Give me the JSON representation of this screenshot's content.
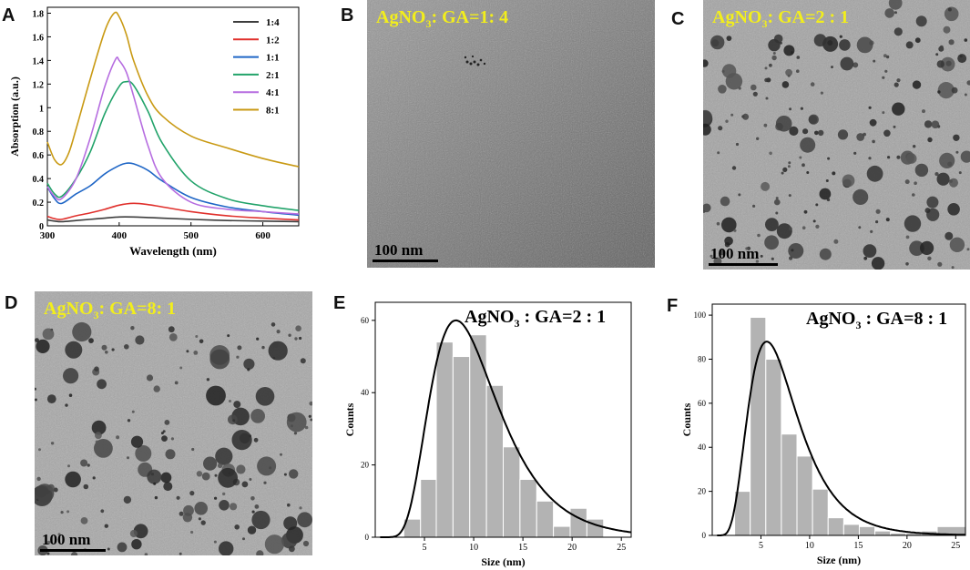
{
  "panels": {
    "A": "A",
    "B": "B",
    "C": "C",
    "D": "D",
    "E": "E",
    "F": "F"
  },
  "tem": {
    "b_label_pre": "AgNO",
    "b_label_sub": "3",
    "b_label_post": ": GA=1: 4",
    "c_label_pre": "AgNO",
    "c_label_sub": "3",
    "c_label_post": ": GA=2 : 1",
    "d_label_pre": "AgNO",
    "d_label_sub": "3",
    "d_label_post": ": GA=8: 1",
    "scale_text": "100 nm"
  },
  "colors": {
    "s1_4": "#3d3d3d",
    "s1_2": "#e0302c",
    "s1_1": "#1f66c6",
    "s2_1": "#22a36a",
    "s4_1": "#b66de0",
    "s8_1": "#c99a14",
    "bar": "#b3b3b3",
    "fit": "#000000",
    "label": "#f2ee1c"
  },
  "chart_data": [
    {
      "id": "A",
      "type": "line",
      "xlabel": "Wavelength  (nm)",
      "ylabel": "Absorption (a.u.)",
      "xlim": [
        300,
        650
      ],
      "ylim": [
        0,
        1.85
      ],
      "xticks": [
        300,
        400,
        500,
        600
      ],
      "yticks": [
        0,
        0.2,
        0.4,
        0.6,
        0.8,
        1.0,
        1.2,
        1.4,
        1.6,
        1.8
      ],
      "legend": "top-right",
      "series": [
        {
          "name": "1:4",
          "color": "#3d3d3d",
          "x": [
            300,
            310,
            320,
            340,
            360,
            380,
            400,
            420,
            440,
            460,
            500,
            550,
            600,
            650
          ],
          "y": [
            0.05,
            0.04,
            0.035,
            0.045,
            0.055,
            0.065,
            0.075,
            0.075,
            0.07,
            0.065,
            0.055,
            0.045,
            0.04,
            0.035
          ]
        },
        {
          "name": "1:2",
          "color": "#e0302c",
          "x": [
            300,
            310,
            320,
            340,
            360,
            380,
            400,
            420,
            440,
            460,
            500,
            550,
            600,
            650
          ],
          "y": [
            0.08,
            0.06,
            0.055,
            0.085,
            0.11,
            0.14,
            0.175,
            0.19,
            0.18,
            0.16,
            0.12,
            0.085,
            0.065,
            0.05
          ]
        },
        {
          "name": "1:1",
          "color": "#1f66c6",
          "x": [
            300,
            310,
            320,
            340,
            360,
            380,
            400,
            410,
            420,
            440,
            460,
            500,
            550,
            600,
            650
          ],
          "y": [
            0.33,
            0.23,
            0.19,
            0.27,
            0.34,
            0.44,
            0.51,
            0.53,
            0.525,
            0.47,
            0.38,
            0.24,
            0.16,
            0.12,
            0.09
          ]
        },
        {
          "name": "2:1",
          "color": "#22a36a",
          "x": [
            300,
            310,
            320,
            340,
            360,
            380,
            400,
            410,
            420,
            440,
            460,
            500,
            550,
            600,
            650
          ],
          "y": [
            0.36,
            0.27,
            0.25,
            0.4,
            0.63,
            0.95,
            1.18,
            1.22,
            1.19,
            0.97,
            0.7,
            0.38,
            0.23,
            0.17,
            0.13
          ]
        },
        {
          "name": "4:1",
          "color": "#b66de0",
          "x": [
            300,
            310,
            320,
            340,
            360,
            380,
            395,
            400,
            410,
            420,
            440,
            460,
            500,
            550,
            600,
            650
          ],
          "y": [
            0.33,
            0.25,
            0.23,
            0.4,
            0.75,
            1.18,
            1.41,
            1.4,
            1.3,
            1.1,
            0.68,
            0.4,
            0.2,
            0.14,
            0.12,
            0.1
          ]
        },
        {
          "name": "8:1",
          "color": "#c99a14",
          "x": [
            300,
            310,
            320,
            330,
            340,
            360,
            380,
            393,
            400,
            410,
            420,
            440,
            460,
            500,
            550,
            600,
            650
          ],
          "y": [
            0.71,
            0.56,
            0.52,
            0.62,
            0.82,
            1.25,
            1.65,
            1.8,
            1.77,
            1.62,
            1.4,
            1.1,
            0.93,
            0.76,
            0.66,
            0.57,
            0.5
          ]
        }
      ]
    },
    {
      "id": "E",
      "type": "bar",
      "title": "AgNO3 : GA=2 : 1",
      "xlabel": "Size (nm)",
      "ylabel": "Counts",
      "xlim": [
        0,
        26
      ],
      "ylim": [
        0,
        65
      ],
      "xticks": [
        5,
        10,
        15,
        20,
        25
      ],
      "yticks": [
        0,
        20,
        40,
        60
      ],
      "bins": [
        [
          2.9,
          4.6,
          5
        ],
        [
          4.6,
          6.2,
          16
        ],
        [
          6.2,
          7.9,
          54
        ],
        [
          7.9,
          9.6,
          50
        ],
        [
          9.6,
          11.3,
          56
        ],
        [
          11.3,
          13.0,
          42
        ],
        [
          13.0,
          14.7,
          25
        ],
        [
          14.7,
          16.4,
          16
        ],
        [
          16.4,
          18.1,
          10
        ],
        [
          18.1,
          19.8,
          3
        ],
        [
          19.8,
          21.5,
          8
        ],
        [
          21.5,
          23.2,
          5
        ]
      ],
      "fit": {
        "mode": 8.2,
        "peak": 60,
        "sigma": 0.42
      }
    },
    {
      "id": "F",
      "type": "bar",
      "title": "AgNO3 : GA=8 : 1",
      "xlabel": "Size (nm)",
      "ylabel": "Counts",
      "xlim": [
        0,
        26
      ],
      "ylim": [
        0,
        105
      ],
      "xticks": [
        5,
        10,
        15,
        20,
        25
      ],
      "yticks": [
        0,
        20,
        40,
        60,
        80,
        100
      ],
      "bins": [
        [
          2.3,
          3.9,
          20
        ],
        [
          3.9,
          5.5,
          99
        ],
        [
          5.5,
          7.1,
          80
        ],
        [
          7.1,
          8.7,
          46
        ],
        [
          8.7,
          10.3,
          36
        ],
        [
          10.3,
          11.9,
          21
        ],
        [
          11.9,
          13.5,
          8
        ],
        [
          13.5,
          15.1,
          5
        ],
        [
          15.1,
          16.7,
          4
        ],
        [
          16.7,
          18.3,
          2
        ],
        [
          18.3,
          19.9,
          1
        ],
        [
          19.9,
          21.5,
          1
        ],
        [
          21.5,
          23.1,
          2
        ],
        [
          23.1,
          26.0,
          4
        ]
      ],
      "fit": {
        "mode": 5.6,
        "peak": 88,
        "sigma": 0.45
      }
    }
  ]
}
